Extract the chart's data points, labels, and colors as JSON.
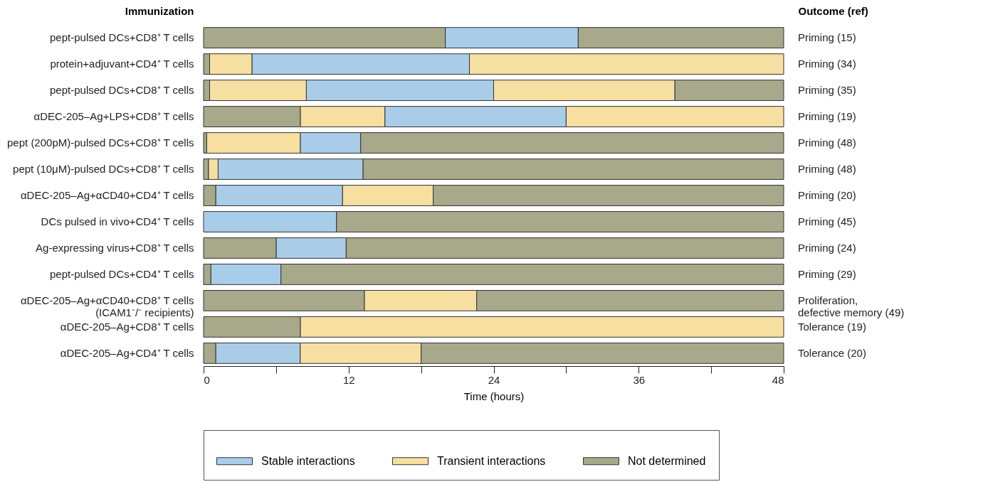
{
  "chart_data": {
    "type": "bar",
    "orientation": "horizontal",
    "ylabel": "Immunization",
    "y2label": "Outcome (ref)",
    "xlabel": "Time (hours)",
    "categories": [
      "pept-pulsed DCs+CD8⁺ T cells",
      "protein+adjuvant+CD4⁺ T cells",
      "pept-pulsed DCs+CD8⁺ T cells",
      "αDEC-205–Ag+LPS+CD8⁺ T cells",
      "pept (200pM)-pulsed DCs+CD8⁺ T cells",
      "pept (10μM)-pulsed DCs+CD8⁺ T cells",
      "αDEC-205–Ag+αCD40+CD4⁺ T cells",
      "DCs pulsed in vivo+CD4⁺ T cells",
      "Ag-expressing virus+CD8⁺ T cells",
      "pept-pulsed DCs+CD4⁺ T cells",
      "αDEC-205–Ag+αCD40+CD8⁺ T cells\n(ICAM1⁻/⁻ recipients)",
      "αDEC-205–Ag+CD8⁺ T cells",
      "αDEC-205–Ag+CD4⁺ T cells"
    ],
    "y2_categories": [
      "Priming (15)",
      "Priming (34)",
      "Priming (35)",
      "Priming (19)",
      "Priming (48)",
      "Priming (48)",
      "Priming (20)",
      "Priming (45)",
      "Priming (24)",
      "Priming (29)",
      "Proliferation,\ndefective memory (49)",
      "Tolerance (19)",
      "Tolerance (20)"
    ],
    "series": [
      {
        "name": "Stable interactions",
        "color": "#a9cde9",
        "base": [
          20,
          4,
          8.5,
          15,
          8,
          1.2,
          1,
          0,
          6,
          0.6,
          null,
          null,
          1
        ],
        "values": [
          11,
          18,
          15.5,
          15,
          5,
          12,
          10.5,
          11,
          5.8,
          5.8,
          null,
          null,
          7
        ]
      },
      {
        "name": "Transient interactions",
        "color": "#f7dfa2",
        "base": [
          null,
          0.5,
          0.5,
          8,
          0.25,
          0.4,
          11.5,
          null,
          null,
          null,
          13.3,
          8,
          8
        ],
        "values": [
          null,
          3.5,
          8,
          7,
          7.75,
          0.8,
          7.5,
          null,
          null,
          null,
          9.3,
          40,
          10
        ]
      },
      {
        "color": "#f7dfa2",
        "base": [
          null,
          22,
          24,
          30,
          null,
          null,
          null,
          null,
          null,
          null,
          null,
          null,
          null
        ],
        "values": [
          null,
          26,
          15,
          18,
          null,
          null,
          null,
          null,
          null,
          null,
          null,
          null,
          null
        ]
      },
      {
        "name": "Not determined",
        "color": "#a8a98a",
        "base": [
          0,
          0,
          0,
          0,
          0,
          0,
          0,
          null,
          0,
          0,
          0,
          0,
          0
        ],
        "values": [
          20,
          0.5,
          0.5,
          8,
          0.25,
          0.4,
          1,
          null,
          6,
          0.6,
          13.3,
          8,
          1
        ]
      },
      {
        "color": "#a8a98a",
        "base": [
          31,
          null,
          39,
          null,
          13,
          13.2,
          19,
          11,
          11.8,
          6.4,
          22.6,
          null,
          18
        ],
        "values": [
          17,
          null,
          9,
          null,
          35,
          34.8,
          29,
          37,
          36.2,
          41.6,
          25.4,
          null,
          30
        ]
      }
    ],
    "xlim": [
      0,
      48
    ],
    "xticks": [
      0,
      {
        "value": 6,
        "label": null
      },
      12,
      {
        "value": 18,
        "label": null
      },
      24,
      {
        "value": 30,
        "label": null
      },
      36,
      {
        "value": 42,
        "label": null
      },
      48
    ],
    "legend": "bottom",
    "grid": false
  }
}
